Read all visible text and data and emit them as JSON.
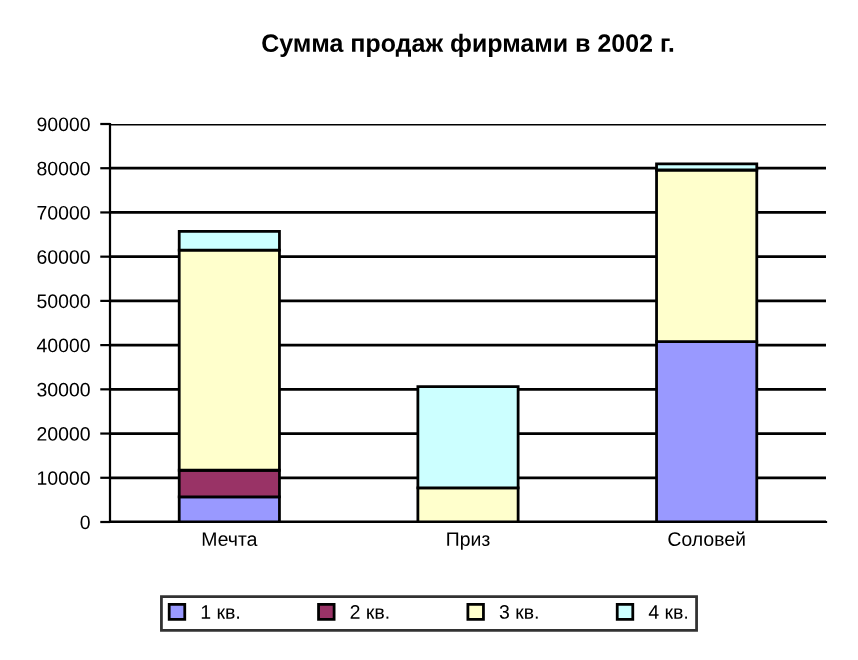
{
  "chart_data": {
    "type": "bar",
    "stacked": true,
    "title": "Сумма продаж фирмами в 2002 г.",
    "categories": [
      "Мечта",
      "Приз",
      "Соловей"
    ],
    "series": [
      {
        "name": "1 кв.",
        "color": "#9999ff",
        "values": [
          5700,
          0,
          40800
        ]
      },
      {
        "name": "2 кв.",
        "color": "#993366",
        "values": [
          6000,
          0,
          0
        ]
      },
      {
        "name": "3 кв.",
        "color": "#ffffcc",
        "values": [
          49800,
          7700,
          38800
        ]
      },
      {
        "name": "4 кв.",
        "color": "#ccffff",
        "values": [
          4200,
          22900,
          1400
        ]
      }
    ],
    "ylim": [
      0,
      90000
    ],
    "yticks": [
      0,
      10000,
      20000,
      30000,
      40000,
      50000,
      60000,
      70000,
      80000,
      90000
    ],
    "grid": "y",
    "legend": "bottom"
  }
}
